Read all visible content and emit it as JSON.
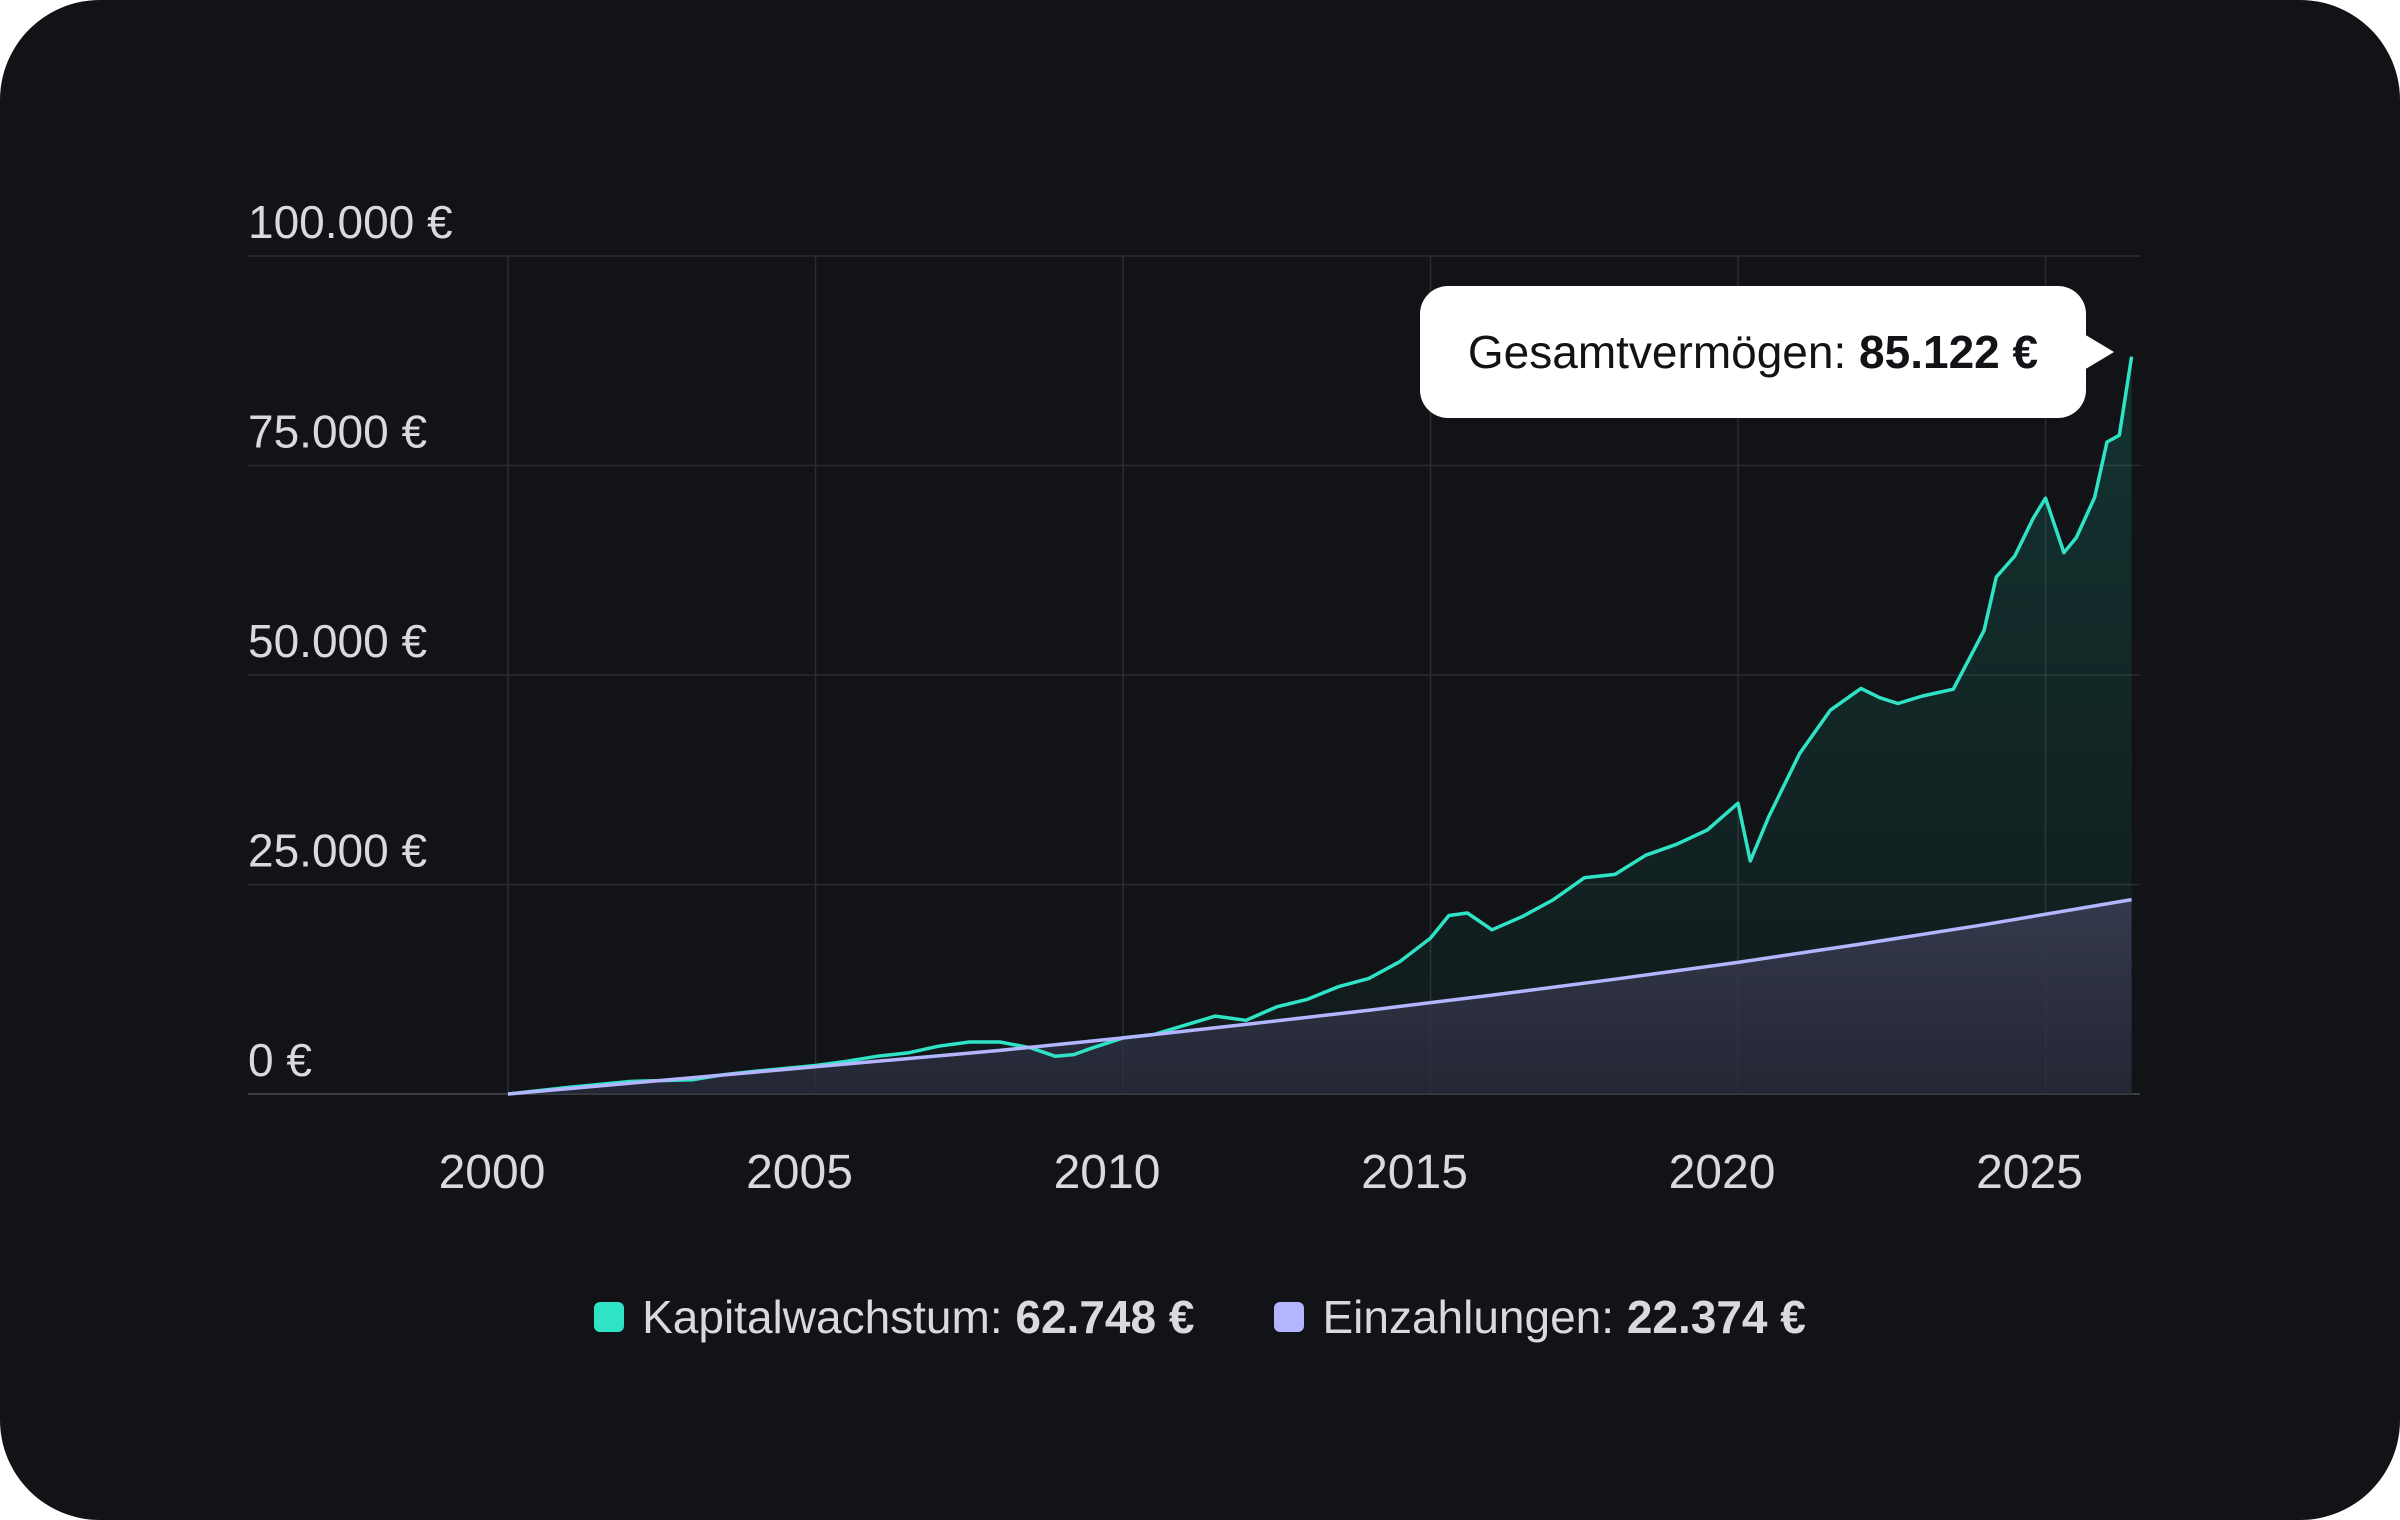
{
  "chart_data": {
    "type": "area",
    "title": "",
    "xlabel": "",
    "ylabel": "",
    "ylim": [
      0,
      100000
    ],
    "xlim": [
      2000,
      2026.5
    ],
    "grid": true,
    "legend_position": "bottom",
    "y_ticks": [
      {
        "value": 0,
        "label": "0 €"
      },
      {
        "value": 25000,
        "label": "25.000 €"
      },
      {
        "value": 50000,
        "label": "50.000 €"
      },
      {
        "value": 75000,
        "label": "75.000 €"
      },
      {
        "value": 100000,
        "label": "100.000 €"
      }
    ],
    "x_ticks": [
      {
        "value": 2000,
        "label": "2000"
      },
      {
        "value": 2005,
        "label": "2005"
      },
      {
        "value": 2010,
        "label": "2010"
      },
      {
        "value": 2015,
        "label": "2015"
      },
      {
        "value": 2020,
        "label": "2020"
      },
      {
        "value": 2025,
        "label": "2025"
      }
    ],
    "series": [
      {
        "name": "Gesamtvermögen",
        "color": "#2fe3c6",
        "x": [
          2000,
          2001,
          2002,
          2003,
          2003.5,
          2004,
          2005,
          2005.5,
          2006,
          2006.5,
          2007,
          2007.5,
          2008,
          2008.5,
          2008.9,
          2009.2,
          2009.5,
          2010,
          2010.5,
          2011,
          2011.5,
          2012,
          2012.5,
          2013,
          2013.5,
          2014,
          2014.5,
          2015,
          2015.3,
          2015.6,
          2016,
          2016.5,
          2017,
          2017.5,
          2018,
          2018.5,
          2019,
          2019.5,
          2020,
          2020.2,
          2020.5,
          2021,
          2021.5,
          2022,
          2022.3,
          2022.6,
          2023,
          2023.5,
          2024,
          2024.2,
          2024.5,
          2024.8,
          2025,
          2025.3,
          2025.5,
          2025.8,
          2026,
          2026.2,
          2026.4
        ],
        "y": [
          0,
          800,
          1500,
          1700,
          2300,
          2700,
          3400,
          3900,
          4500,
          4900,
          5700,
          6200,
          6200,
          5500,
          4500,
          4700,
          5500,
          6700,
          7100,
          8200,
          9300,
          8800,
          10400,
          11300,
          12800,
          13800,
          15800,
          18600,
          21300,
          21600,
          19600,
          21200,
          23200,
          25800,
          26200,
          28500,
          29800,
          31500,
          34700,
          27800,
          33100,
          40600,
          45800,
          48400,
          47300,
          46600,
          47500,
          48300,
          55300,
          61700,
          64200,
          68700,
          71100,
          64600,
          66400,
          71200,
          77800,
          78600,
          88000
        ]
      },
      {
        "name": "Einzahlungen",
        "color": "#b3b6ff",
        "x": [
          2000,
          2002,
          2004,
          2006,
          2008,
          2010,
          2012,
          2014,
          2016,
          2018,
          2020,
          2022,
          2024,
          2026.4
        ],
        "y": [
          0,
          1300,
          2600,
          3900,
          5200,
          6700,
          8300,
          10000,
          11800,
          13700,
          15700,
          17900,
          20200,
          23200
        ]
      }
    ],
    "tooltip": {
      "label": "Gesamtvermögen: ",
      "value": "85.122 €"
    },
    "legend": [
      {
        "label": "Kapitalwachstum: ",
        "value": "62.748 €",
        "color": "#2fe3c6"
      },
      {
        "label": "Einzahlungen: ",
        "value": "22.374 €",
        "color": "#b3b6ff"
      }
    ]
  }
}
